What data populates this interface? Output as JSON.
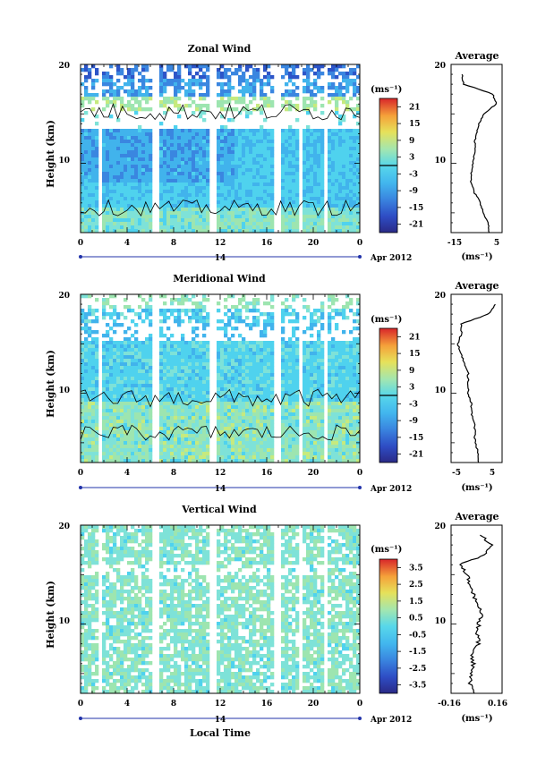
{
  "chart_data": [
    {
      "type": "heatmap",
      "title": "Zonal Wind",
      "ylabel": "Height (km)",
      "y_ticks": [
        "20",
        "10"
      ],
      "x_ticks": [
        "0",
        "4",
        "8",
        "12",
        "16",
        "20",
        "0"
      ],
      "date_day": "14",
      "date_label": "Apr 2012",
      "ylim": [
        3,
        20
      ],
      "xlim": [
        0,
        24
      ],
      "colorbar": {
        "unit": "(ms⁻¹)",
        "ticks": [
          "21",
          "15",
          "9",
          "3",
          "-3",
          "-9",
          "-15",
          "-21"
        ],
        "range": [
          -24,
          24
        ]
      },
      "average": {
        "title": "Average",
        "x_ticks": [
          "-15",
          "5"
        ],
        "xlim": [
          -20,
          8
        ],
        "xlabel": "(ms⁻¹)",
        "y_ticks": [
          "20",
          "10"
        ],
        "profile_heights": [
          3,
          4,
          5,
          6,
          7,
          8,
          9,
          10,
          11,
          12,
          13,
          14,
          15,
          16,
          17,
          18,
          19
        ],
        "profile_values": [
          1,
          0,
          -2,
          -4,
          -7,
          -9,
          -9,
          -8,
          -7,
          -7,
          -6,
          -5,
          -2,
          5,
          3,
          -13,
          -14
        ]
      }
    },
    {
      "type": "heatmap",
      "title": "Meridional Wind",
      "ylabel": "Height (km)",
      "y_ticks": [
        "20",
        "10"
      ],
      "x_ticks": [
        "0",
        "4",
        "8",
        "12",
        "16",
        "20",
        "0"
      ],
      "date_day": "14",
      "date_label": "Apr 2012",
      "ylim": [
        3,
        20
      ],
      "xlim": [
        0,
        24
      ],
      "colorbar": {
        "unit": "(ms⁻¹)",
        "ticks": [
          "21",
          "15",
          "9",
          "3",
          "-3",
          "-9",
          "-15",
          "-21"
        ],
        "range": [
          -24,
          24
        ]
      },
      "average": {
        "title": "Average",
        "x_ticks": [
          "-5",
          "5"
        ],
        "xlim": [
          -8,
          7
        ],
        "xlabel": "(ms⁻¹)",
        "y_ticks": [
          "20",
          "10"
        ],
        "profile_heights": [
          3,
          4,
          5,
          6,
          7,
          8,
          9,
          10,
          11,
          12,
          13,
          14,
          15,
          16,
          17,
          18,
          19
        ],
        "profile_values": [
          0,
          0,
          -1,
          -1,
          -1,
          -2,
          -2,
          -3,
          -3,
          -3,
          -4,
          -5,
          -6,
          -5,
          -5,
          3,
          5
        ]
      }
    },
    {
      "type": "heatmap",
      "title": "Vertical Wind",
      "ylabel": "Height (km)",
      "y_ticks": [
        "20",
        "10"
      ],
      "x_ticks": [
        "0",
        "4",
        "8",
        "12",
        "16",
        "20",
        "0"
      ],
      "date_day": "14",
      "date_label": "Apr 2012",
      "xlabel": "Local Time",
      "ylim": [
        3,
        20
      ],
      "xlim": [
        0,
        24
      ],
      "colorbar": {
        "unit": "(ms⁻¹)",
        "ticks": [
          "3.5",
          "2.5",
          "1.5",
          "0.5",
          "-0.5",
          "-1.5",
          "-2.5",
          "-3.5"
        ],
        "range": [
          -4,
          4
        ]
      },
      "average": {
        "title": "Average",
        "x_ticks": [
          "-0.16",
          "0.16"
        ],
        "xlim": [
          -0.22,
          0.22
        ],
        "xlabel": "(ms⁻¹)",
        "y_ticks": [
          "20",
          "10"
        ],
        "profile_heights": [
          3,
          4,
          5,
          6,
          7,
          8,
          9,
          10,
          11,
          12,
          13,
          14,
          15,
          16,
          17,
          18,
          19
        ],
        "profile_values": [
          -0.02,
          -0.06,
          -0.04,
          -0.03,
          -0.05,
          0.02,
          0.0,
          0.02,
          0.04,
          0.01,
          -0.03,
          -0.06,
          -0.08,
          -0.15,
          0.08,
          0.13,
          0.03
        ]
      }
    }
  ],
  "colors": {
    "colorbar_stops": [
      "#2a3a9a",
      "#2d55c8",
      "#3a86e0",
      "#41b3ec",
      "#4fd2ee",
      "#7ee2d8",
      "#9de5b0",
      "#c6ea7e",
      "#f2d44a",
      "#f59a35",
      "#ec4f2a",
      "#d8262a"
    ]
  }
}
